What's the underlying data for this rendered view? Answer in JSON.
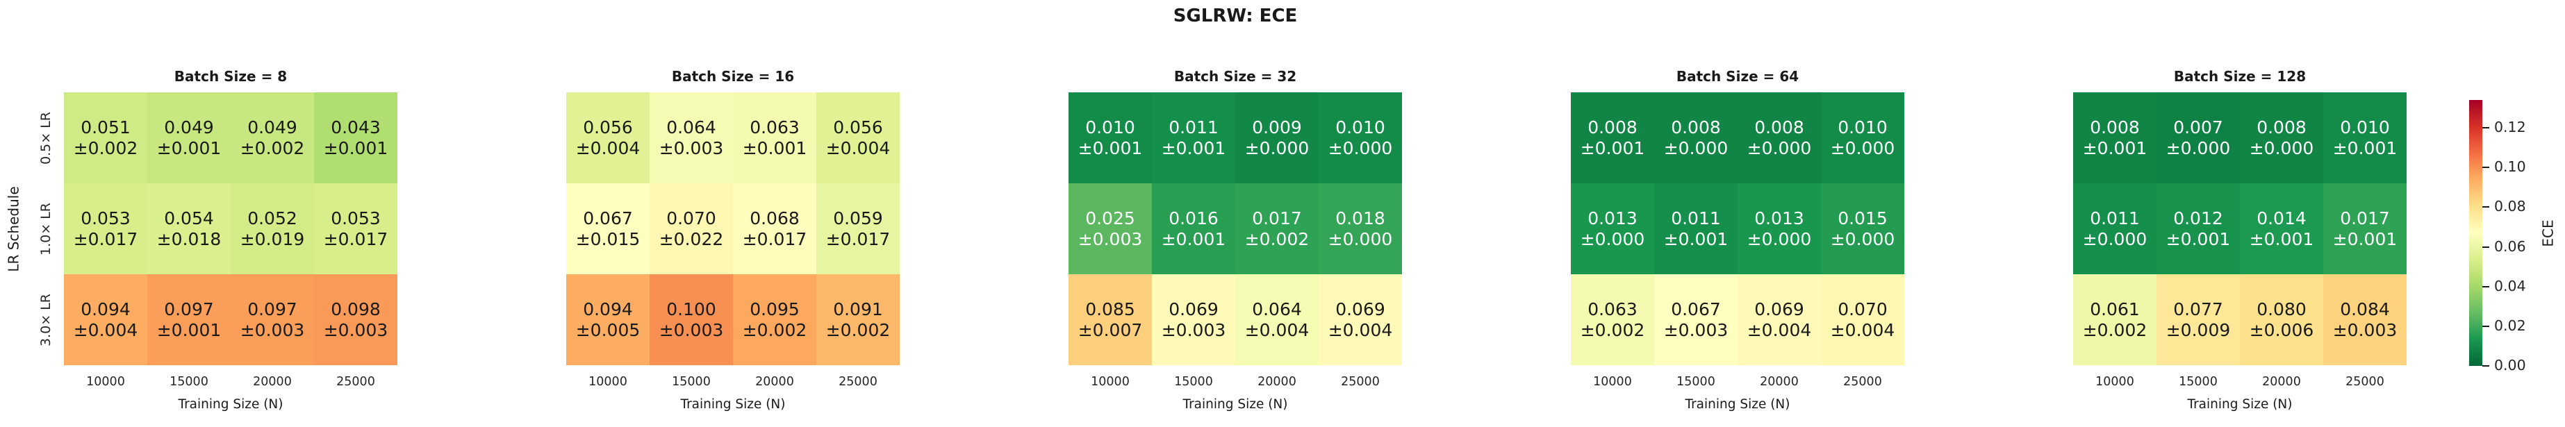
{
  "title": "SGLRW: ECE",
  "chart_data": {
    "type": "heatmap",
    "title": "SGLRW: ECE",
    "xlabel": "Training Size (N)",
    "ylabel": "LR Schedule",
    "x_ticklabels": [
      "10000",
      "15000",
      "20000",
      "25000"
    ],
    "y_ticklabels": [
      "0.5× LR",
      "1.0× LR",
      "3.0× LR"
    ],
    "annotation_format": "value over ±error, 3 decimals",
    "colorbar": {
      "label": "ECE",
      "ticks": [
        0.0,
        0.02,
        0.04,
        0.06,
        0.08,
        0.1,
        0.12
      ],
      "vmin": 0.0,
      "vmax": 0.134,
      "cmap": "RdYlGn reversed (green=low, red=high)",
      "cmap_anchors": [
        "#006837",
        "#1a9850",
        "#66bd63",
        "#a6d96a",
        "#d9ef8b",
        "#ffffbf",
        "#fee08b",
        "#fdae61",
        "#f46d43",
        "#d73027",
        "#a50026"
      ]
    },
    "panels": [
      {
        "title": "Batch Size = 8",
        "values": [
          [
            0.051,
            0.049,
            0.049,
            0.043
          ],
          [
            0.053,
            0.054,
            0.052,
            0.053
          ],
          [
            0.094,
            0.097,
            0.097,
            0.098
          ]
        ],
        "errors": [
          [
            0.002,
            0.001,
            0.002,
            0.001
          ],
          [
            0.017,
            0.018,
            0.019,
            0.017
          ],
          [
            0.004,
            0.001,
            0.003,
            0.003
          ]
        ]
      },
      {
        "title": "Batch Size = 16",
        "values": [
          [
            0.056,
            0.064,
            0.063,
            0.056
          ],
          [
            0.067,
            0.07,
            0.068,
            0.059
          ],
          [
            0.094,
            0.1,
            0.095,
            0.091
          ]
        ],
        "errors": [
          [
            0.004,
            0.003,
            0.001,
            0.004
          ],
          [
            0.015,
            0.022,
            0.017,
            0.017
          ],
          [
            0.005,
            0.003,
            0.002,
            0.002
          ]
        ]
      },
      {
        "title": "Batch Size = 32",
        "values": [
          [
            0.01,
            0.011,
            0.009,
            0.01
          ],
          [
            0.025,
            0.016,
            0.017,
            0.018
          ],
          [
            0.085,
            0.069,
            0.064,
            0.069
          ]
        ],
        "errors": [
          [
            0.001,
            0.001,
            0.0,
            0.0
          ],
          [
            0.003,
            0.001,
            0.002,
            0.0
          ],
          [
            0.007,
            0.003,
            0.004,
            0.004
          ]
        ]
      },
      {
        "title": "Batch Size = 64",
        "values": [
          [
            0.008,
            0.008,
            0.008,
            0.01
          ],
          [
            0.013,
            0.011,
            0.013,
            0.015
          ],
          [
            0.063,
            0.067,
            0.069,
            0.07
          ]
        ],
        "errors": [
          [
            0.001,
            0.0,
            0.0,
            0.0
          ],
          [
            0.0,
            0.001,
            0.0,
            0.0
          ],
          [
            0.002,
            0.003,
            0.004,
            0.004
          ]
        ]
      },
      {
        "title": "Batch Size = 128",
        "values": [
          [
            0.008,
            0.007,
            0.008,
            0.01
          ],
          [
            0.011,
            0.012,
            0.014,
            0.017
          ],
          [
            0.061,
            0.077,
            0.08,
            0.084
          ]
        ],
        "errors": [
          [
            0.001,
            0.0,
            0.0,
            0.001
          ],
          [
            0.0,
            0.001,
            0.001,
            0.001
          ],
          [
            0.002,
            0.009,
            0.006,
            0.003
          ]
        ]
      }
    ]
  }
}
